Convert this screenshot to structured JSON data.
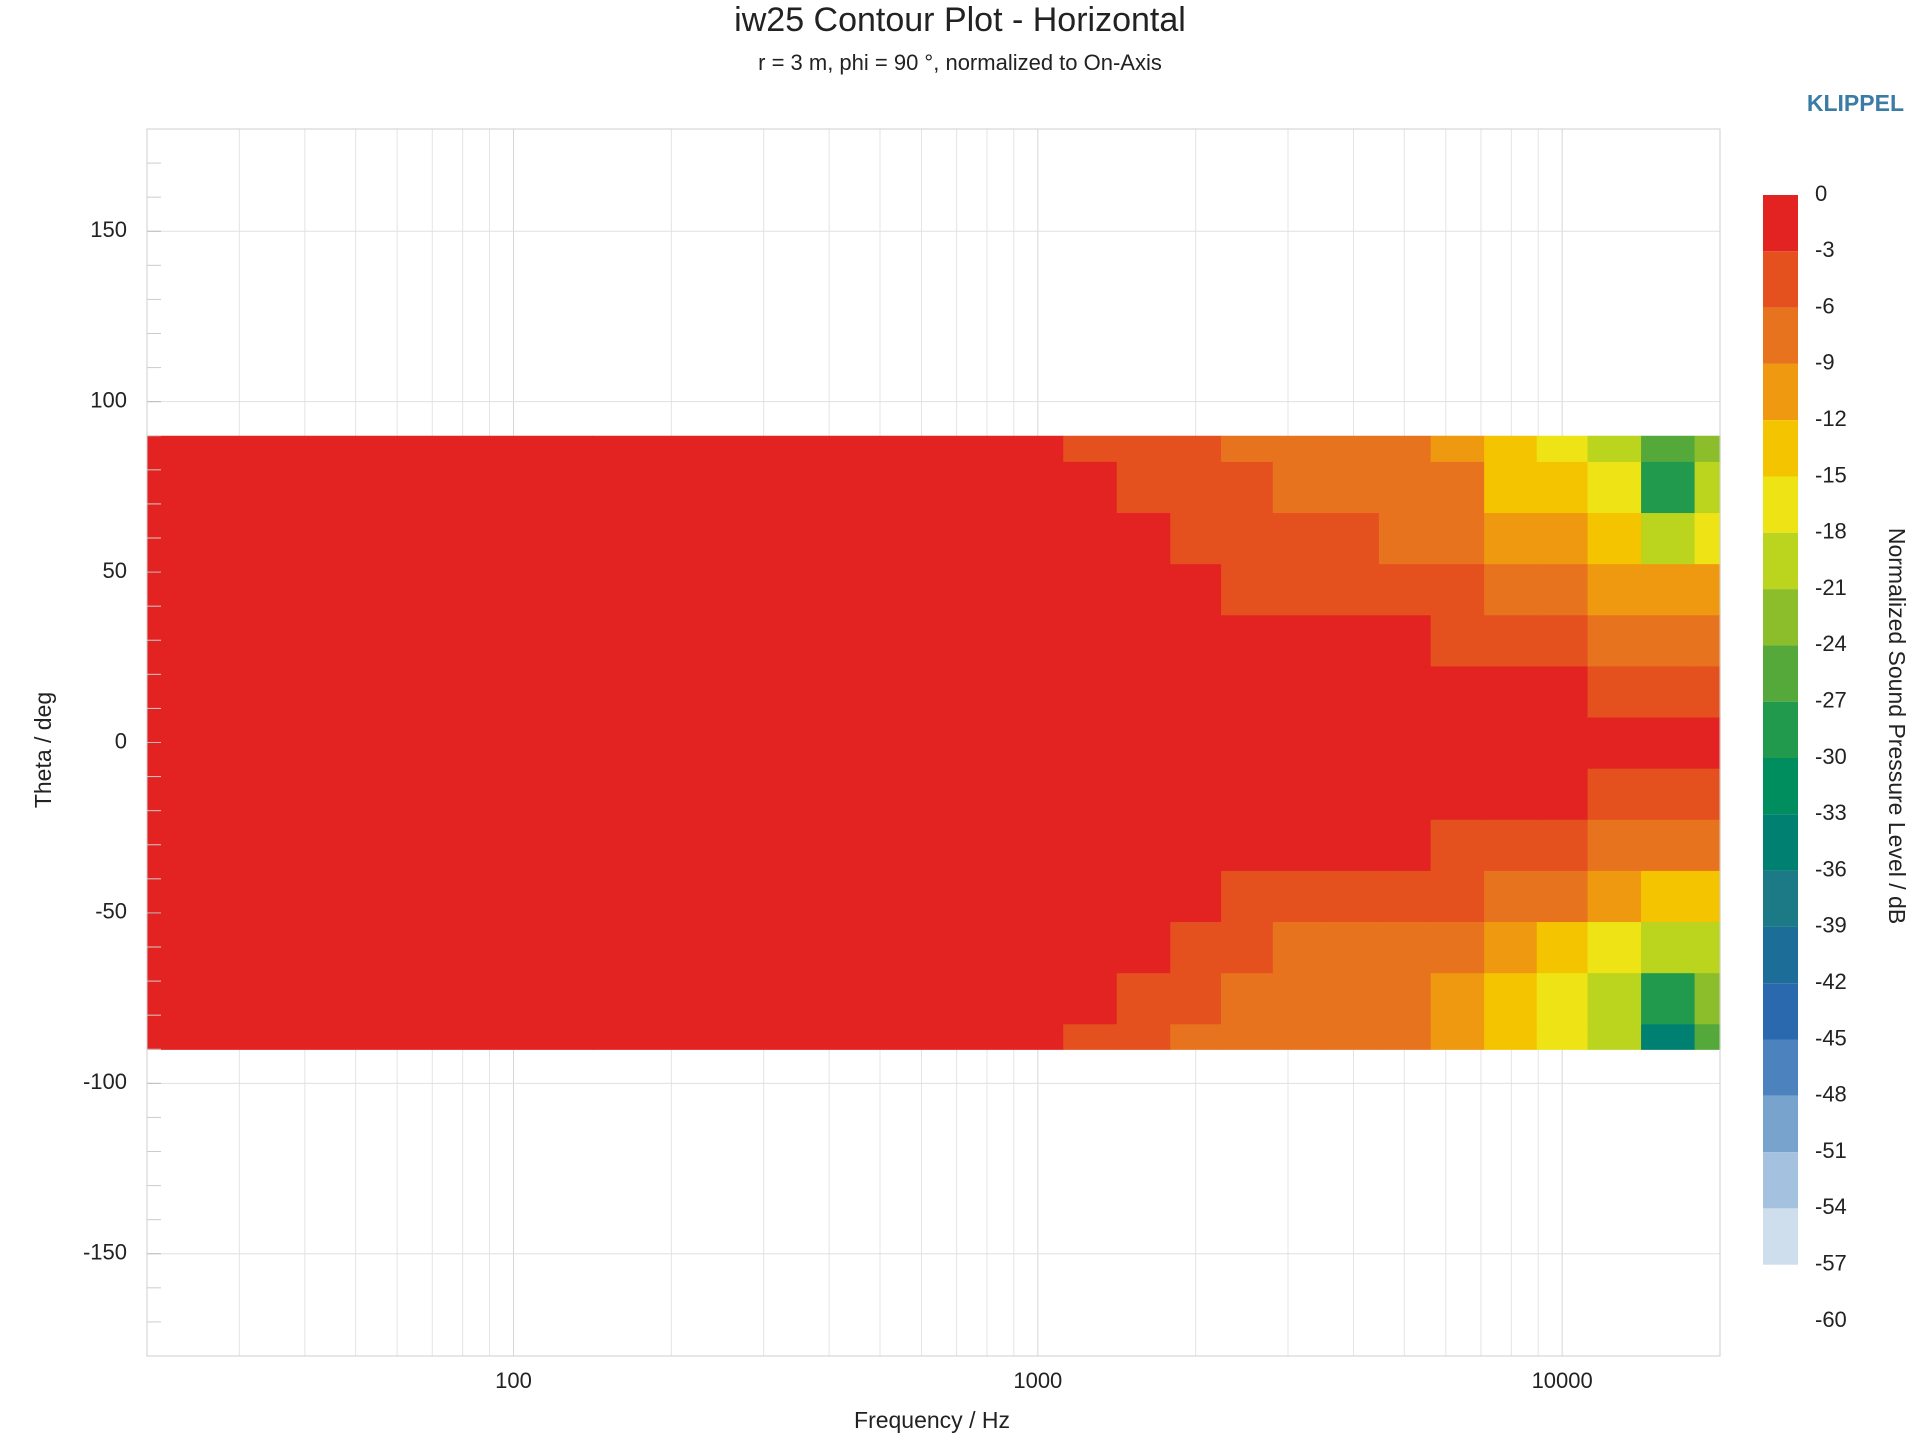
{
  "chart_data": {
    "type": "contour",
    "title": "iw25 Contour Plot - Horizontal",
    "subtitle": "r = 3 m, phi = 90 °, normalized to On-Axis",
    "brand": "KLIPPEL",
    "x_label": "Frequency / Hz",
    "y_label": "Theta / deg",
    "colorbar_label": "Normalized Sound Pressure Level / dB",
    "x_log": true,
    "grid": true,
    "xlim": [
      20,
      20000
    ],
    "xticks": [
      100,
      1000,
      10000
    ],
    "x_minor_ticks": [
      30,
      40,
      50,
      60,
      70,
      80,
      90,
      200,
      300,
      400,
      500,
      600,
      700,
      800,
      900,
      2000,
      3000,
      4000,
      5000,
      6000,
      7000,
      8000,
      9000
    ],
    "ylim": [
      -180,
      180
    ],
    "yticks": [
      -150,
      -100,
      -50,
      0,
      50,
      100,
      150
    ],
    "y_minor_ticks": [
      -170,
      -160,
      -140,
      -130,
      -120,
      -110,
      -90,
      -80,
      -70,
      -60,
      -40,
      -30,
      -20,
      -10,
      10,
      20,
      30,
      40,
      60,
      70,
      80,
      90,
      110,
      120,
      130,
      140,
      160,
      170
    ],
    "colorbar_ticks": [
      0,
      -3,
      -6,
      -9,
      -12,
      -15,
      -18,
      -21,
      -24,
      -27,
      -30,
      -33,
      -36,
      -39,
      -42,
      -45,
      -48,
      -51,
      -54,
      -57,
      -60
    ],
    "colors": [
      "#e32322",
      "#e5501f",
      "#e8731e",
      "#ee9910",
      "#f5c400",
      "#ede315",
      "#bbd41d",
      "#8cbe2b",
      "#55a83a",
      "#229a4e",
      "#008e5f",
      "#008071",
      "#1b7a86",
      "#1d6d99",
      "#2a69ad",
      "#4c82bd",
      "#78a3cd",
      "#a5c1e0",
      "#cfdeec"
    ],
    "x": [
      20,
      1000,
      1250,
      1600,
      2000,
      2500,
      3150,
      4000,
      5000,
      6300,
      8000,
      10000,
      12500,
      16000,
      20000
    ],
    "y": [
      -90,
      -75,
      -60,
      -45,
      -30,
      -15,
      0,
      15,
      30,
      45,
      60,
      75,
      90
    ],
    "z": [
      [
        -1,
        -1,
        -4,
        -5,
        -6,
        -7,
        -6,
        -7,
        -8,
        -9,
        -14,
        -17,
        -20,
        -33,
        -26
      ],
      [
        -1,
        -1,
        -2,
        -5,
        -5,
        -6,
        -7,
        -7,
        -8,
        -10,
        -13,
        -15,
        -18,
        -27,
        -22
      ],
      [
        -1,
        -1,
        -1,
        -2,
        -4,
        -5,
        -6,
        -6,
        -7,
        -8,
        -10,
        -12,
        -15,
        -20,
        -18
      ],
      [
        -1,
        -1,
        -1,
        -1,
        -2,
        -4,
        -4,
        -4,
        -5,
        -5,
        -7,
        -8,
        -10,
        -12,
        -13
      ],
      [
        -1,
        -1,
        -1,
        -1,
        -1,
        -1,
        -2,
        -2,
        -2,
        -3,
        -4,
        -5,
        -6,
        -7,
        -8
      ],
      [
        -1,
        -1,
        -1,
        -1,
        -1,
        -1,
        -1,
        -1,
        -1,
        -1,
        -2,
        -2,
        -3,
        -3,
        -4
      ],
      [
        -1,
        -1,
        -1,
        -1,
        -1,
        -1,
        -1,
        -1,
        -1,
        -1,
        -1,
        -1,
        -1,
        -1,
        -2
      ],
      [
        -1,
        -1,
        -1,
        -1,
        -1,
        -1,
        -1,
        -1,
        -1,
        -1,
        -2,
        -2,
        -3,
        -3,
        -4
      ],
      [
        -1,
        -1,
        -1,
        -1,
        -1,
        -1,
        -2,
        -2,
        -2,
        -3,
        -4,
        -5,
        -6,
        -7,
        -7
      ],
      [
        -1,
        -1,
        -1,
        -1,
        -2,
        -4,
        -4,
        -4,
        -4,
        -5,
        -6,
        -8,
        -9,
        -11,
        -10
      ],
      [
        -1,
        -1,
        -1,
        -2,
        -4,
        -5,
        -5,
        -5,
        -6,
        -7,
        -9,
        -11,
        -13,
        -19,
        -15
      ],
      [
        -1,
        -1,
        -2,
        -4,
        -5,
        -5,
        -7,
        -6,
        -8,
        -8,
        -12,
        -14,
        -17,
        -28,
        -20
      ],
      [
        -1,
        -1,
        -4,
        -5,
        -5,
        -6,
        -8,
        -6,
        -7,
        -10,
        -13,
        -16,
        -19,
        -24,
        -22
      ]
    ]
  }
}
